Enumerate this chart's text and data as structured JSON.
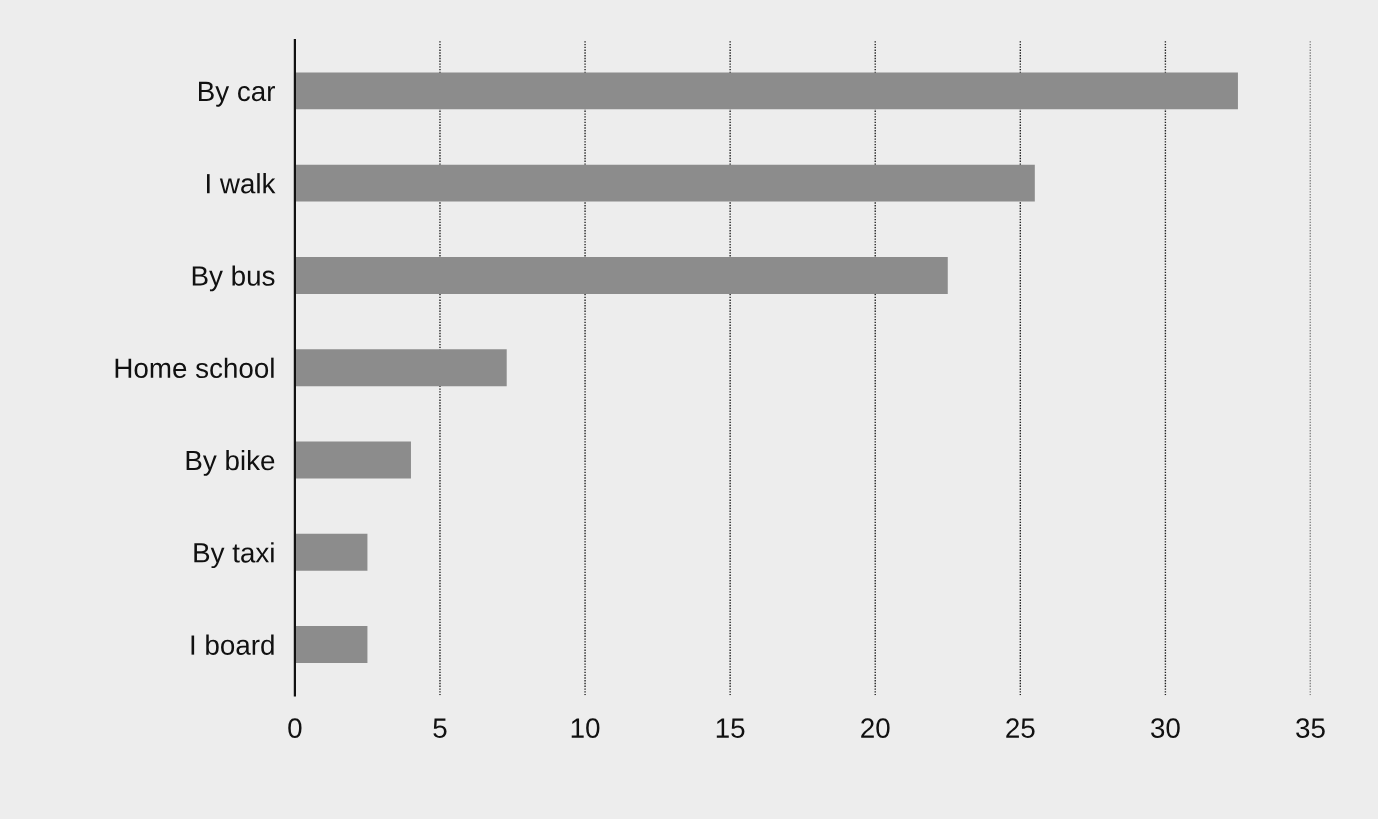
{
  "chart_data": {
    "type": "bar",
    "orientation": "horizontal",
    "categories": [
      "By car",
      "I walk",
      "By bus",
      "Home school",
      "By bike",
      "By taxi",
      "I board"
    ],
    "values": [
      32.5,
      25.5,
      22.5,
      7.3,
      4,
      2.5,
      2.5
    ],
    "color": "#8c8c8c",
    "xlim": [
      0,
      35
    ],
    "xticks": [
      0,
      5,
      10,
      15,
      20,
      25,
      30,
      35
    ],
    "grid": "x"
  }
}
